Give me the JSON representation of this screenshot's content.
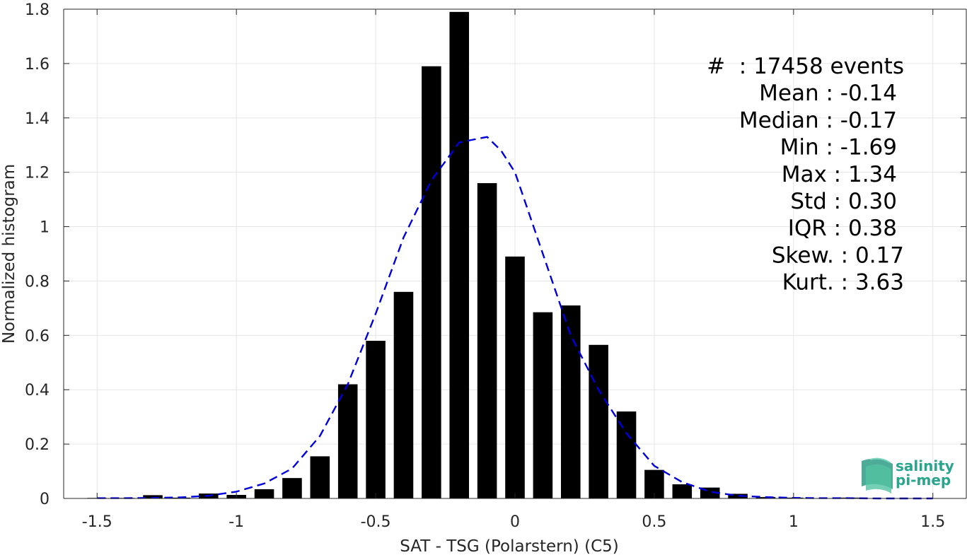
{
  "chart_data": {
    "type": "bar",
    "xlabel": "SAT - TSG (Polarstern) (C5)",
    "ylabel": "Normalized histogram",
    "xlim": [
      -1.62,
      1.62
    ],
    "ylim": [
      0,
      1.8
    ],
    "grid": true,
    "xticks": [
      -1.5,
      -1,
      -0.5,
      0,
      0.5,
      1,
      1.5
    ],
    "xtick_labels": [
      "-1.5",
      "-1",
      "-0.5",
      "0",
      "0.5",
      "1",
      "1.5"
    ],
    "yticks": [
      0,
      0.2,
      0.4,
      0.6,
      0.8,
      1,
      1.2,
      1.4,
      1.6,
      1.8
    ],
    "ytick_labels": [
      "0",
      "0.2",
      "0.4",
      "0.6",
      "0.8",
      "1",
      "1.2",
      "1.4",
      "1.6",
      "1.8"
    ],
    "bar_width": 0.07,
    "bars": {
      "x": [
        -1.5,
        -1.4,
        -1.3,
        -1.2,
        -1.1,
        -1.0,
        -0.9,
        -0.8,
        -0.7,
        -0.6,
        -0.5,
        -0.4,
        -0.3,
        -0.2,
        -0.1,
        0.0,
        0.1,
        0.2,
        0.3,
        0.4,
        0.5,
        0.6,
        0.7,
        0.8,
        0.9,
        1.0,
        1.1,
        1.2,
        1.3
      ],
      "values": [
        0.002,
        0.002,
        0.012,
        0.003,
        0.018,
        0.013,
        0.034,
        0.075,
        0.155,
        0.42,
        0.58,
        0.76,
        1.59,
        1.79,
        1.16,
        0.89,
        0.685,
        0.71,
        0.565,
        0.32,
        0.105,
        0.052,
        0.04,
        0.017,
        0.005,
        0.003,
        0.001,
        0.003,
        0.001
      ],
      "color": "#000000"
    },
    "fit_curve": {
      "style": "dashed",
      "color": "#0000dd",
      "x": [
        -1.5,
        -1.4,
        -1.3,
        -1.2,
        -1.1,
        -1.0,
        -0.9,
        -0.8,
        -0.7,
        -0.6,
        -0.5,
        -0.4,
        -0.3,
        -0.2,
        -0.15,
        -0.1,
        -0.05,
        0.0,
        0.1,
        0.2,
        0.3,
        0.4,
        0.5,
        0.6,
        0.7,
        0.8,
        0.9,
        1.0,
        1.1,
        1.2,
        1.3,
        1.4,
        1.5
      ],
      "y": [
        0.001,
        0.001,
        0.002,
        0.004,
        0.01,
        0.025,
        0.055,
        0.11,
        0.23,
        0.42,
        0.68,
        0.96,
        1.17,
        1.31,
        1.32,
        1.33,
        1.28,
        1.2,
        0.9,
        0.6,
        0.4,
        0.24,
        0.12,
        0.06,
        0.025,
        0.01,
        0.005,
        0.002,
        0.001,
        0.001,
        0.0,
        0.0,
        0.0
      ]
    },
    "annotations": [
      "#  : 17458 events",
      "Mean : -0.14",
      "Median : -0.17",
      "Min : -1.69",
      "Max : 1.34",
      "Std : 0.30",
      "IQR : 0.38",
      "Skew. : 0.17",
      "Kurt. : 3.63"
    ]
  },
  "logo": {
    "line1": "salinity",
    "line2": "pi-mep"
  },
  "colors": {
    "axis": "#262626",
    "grid": "#e6e6e6",
    "bar": "#000000",
    "curve": "#0000dd",
    "logo_text": "#2aa58d",
    "logo_mark": "#3fb596"
  }
}
